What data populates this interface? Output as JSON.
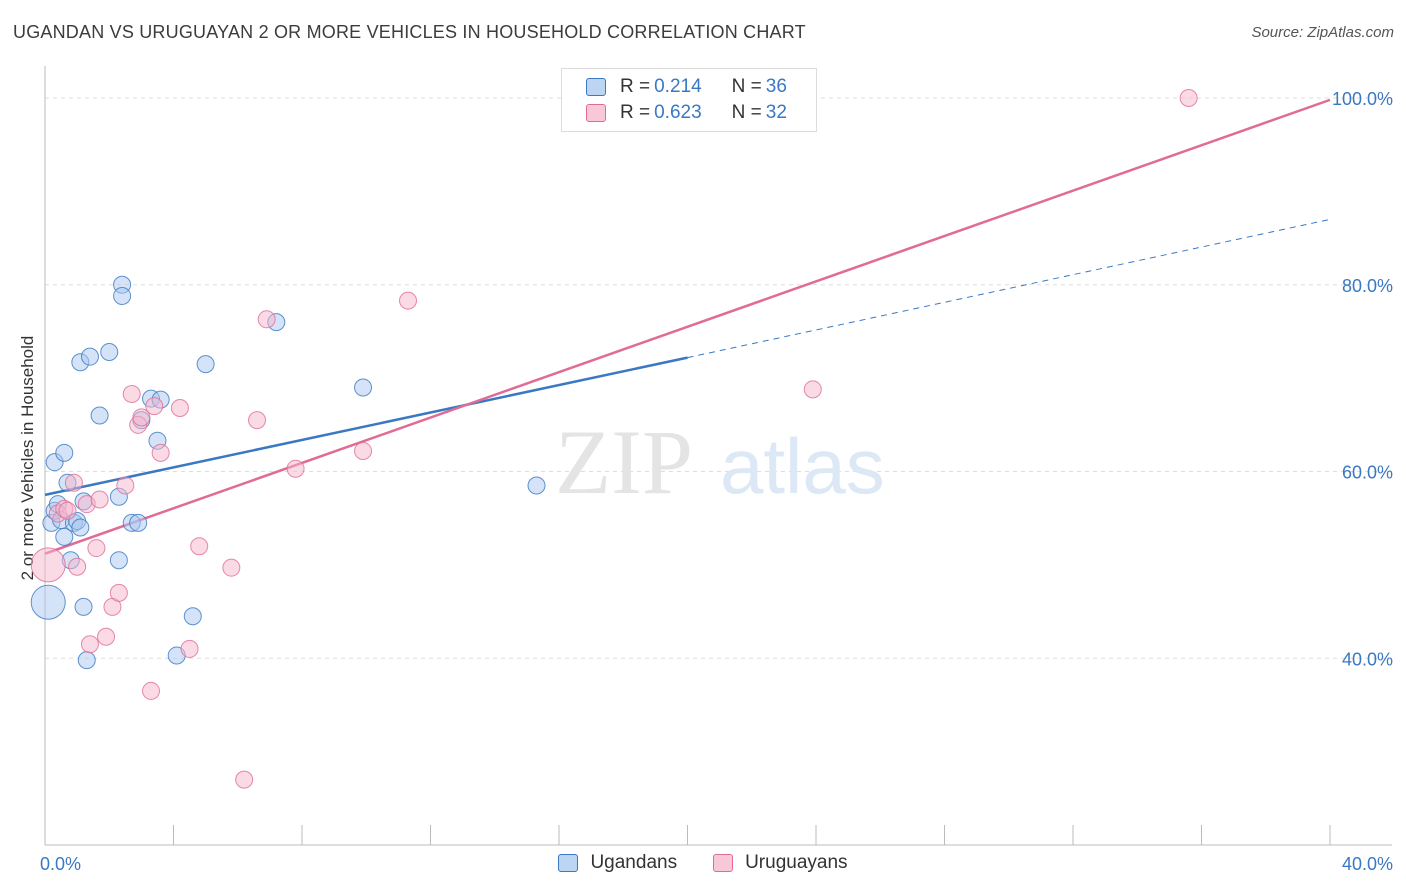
{
  "header": {
    "title": "UGANDAN VS URUGUAYAN 2 OR MORE VEHICLES IN HOUSEHOLD CORRELATION CHART",
    "source": "Source: ZipAtlas.com"
  },
  "colors": {
    "ugandans": "#3a78c3",
    "ugandans_fill": "#aac8ef",
    "uruguayans": "#e06b96",
    "uruguayans_fill": "#f6b6cb",
    "grid": "#dddddd",
    "tick_label": "#3a78c3"
  },
  "watermark": {
    "zip": "ZIP",
    "atlas": "atlas"
  },
  "legend": {
    "rows": [
      {
        "r_label": "R = ",
        "r_value": "0.214",
        "n_label": "N = ",
        "n_value": "36"
      },
      {
        "r_label": "R = ",
        "r_value": "0.623",
        "n_label": "N = ",
        "n_value": "32"
      }
    ]
  },
  "chart_data": {
    "type": "scatter",
    "title": "UGANDAN VS URUGUAYAN 2 OR MORE VEHICLES IN HOUSEHOLD CORRELATION CHART",
    "xlabel": "",
    "ylabel": "2 or more Vehicles in Household",
    "xlim": [
      0,
      40
    ],
    "ylim": [
      20,
      103
    ],
    "x_tick_labels": [
      {
        "value": 0,
        "label": "0.0%"
      },
      {
        "value": 40,
        "label": "40.0%"
      }
    ],
    "y_tick_labels": [
      {
        "value": 40,
        "label": "40.0%"
      },
      {
        "value": 60,
        "label": "60.0%"
      },
      {
        "value": 80,
        "label": "80.0%"
      },
      {
        "value": 100,
        "label": "100.0%"
      }
    ],
    "series": [
      {
        "name": "Ugandans",
        "r": 0.214,
        "n": 36,
        "trend": {
          "x0": 0,
          "y0": 57.5,
          "x1": 20,
          "y1": 72.2,
          "dash_to_x": 40,
          "dash_to_y": 87.0
        },
        "points": [
          {
            "x": 0.1,
            "y": 46.0,
            "big": true
          },
          {
            "x": 0.2,
            "y": 54.5
          },
          {
            "x": 0.3,
            "y": 61.0
          },
          {
            "x": 0.3,
            "y": 55.8
          },
          {
            "x": 0.4,
            "y": 56.5
          },
          {
            "x": 0.5,
            "y": 54.8
          },
          {
            "x": 0.6,
            "y": 62.0
          },
          {
            "x": 0.6,
            "y": 53.0
          },
          {
            "x": 0.7,
            "y": 58.8
          },
          {
            "x": 0.8,
            "y": 50.5
          },
          {
            "x": 0.9,
            "y": 54.5
          },
          {
            "x": 1.0,
            "y": 54.7
          },
          {
            "x": 1.1,
            "y": 71.7
          },
          {
            "x": 1.1,
            "y": 54.0
          },
          {
            "x": 1.2,
            "y": 45.5
          },
          {
            "x": 1.2,
            "y": 56.8
          },
          {
            "x": 1.3,
            "y": 39.8
          },
          {
            "x": 1.4,
            "y": 72.3
          },
          {
            "x": 1.7,
            "y": 66.0
          },
          {
            "x": 2.0,
            "y": 72.8
          },
          {
            "x": 2.3,
            "y": 57.3
          },
          {
            "x": 2.3,
            "y": 50.5
          },
          {
            "x": 2.4,
            "y": 80.0
          },
          {
            "x": 2.4,
            "y": 78.8
          },
          {
            "x": 2.7,
            "y": 54.5
          },
          {
            "x": 2.9,
            "y": 54.5
          },
          {
            "x": 3.3,
            "y": 67.8
          },
          {
            "x": 3.5,
            "y": 63.3
          },
          {
            "x": 3.6,
            "y": 67.7
          },
          {
            "x": 4.1,
            "y": 40.3
          },
          {
            "x": 4.6,
            "y": 44.5
          },
          {
            "x": 5.0,
            "y": 71.5
          },
          {
            "x": 7.2,
            "y": 76.0
          },
          {
            "x": 9.9,
            "y": 69.0
          },
          {
            "x": 15.3,
            "y": 58.5
          },
          {
            "x": 3.0,
            "y": 65.5
          }
        ]
      },
      {
        "name": "Uruguayans",
        "r": 0.623,
        "n": 32,
        "trend": {
          "x0": 0,
          "y0": 51.2,
          "x1": 40,
          "y1": 99.8
        },
        "points": [
          {
            "x": 0.1,
            "y": 50.0,
            "big": true
          },
          {
            "x": 0.4,
            "y": 55.5
          },
          {
            "x": 0.6,
            "y": 56.0
          },
          {
            "x": 0.7,
            "y": 55.8
          },
          {
            "x": 0.9,
            "y": 58.8
          },
          {
            "x": 1.0,
            "y": 49.8
          },
          {
            "x": 1.3,
            "y": 56.5
          },
          {
            "x": 1.4,
            "y": 41.5
          },
          {
            "x": 1.6,
            "y": 51.8
          },
          {
            "x": 1.7,
            "y": 57.0
          },
          {
            "x": 1.9,
            "y": 42.3
          },
          {
            "x": 2.1,
            "y": 45.5
          },
          {
            "x": 2.3,
            "y": 47.0
          },
          {
            "x": 2.5,
            "y": 58.5
          },
          {
            "x": 2.7,
            "y": 68.3
          },
          {
            "x": 2.9,
            "y": 65.0
          },
          {
            "x": 3.0,
            "y": 65.8
          },
          {
            "x": 3.3,
            "y": 36.5
          },
          {
            "x": 3.4,
            "y": 67.0
          },
          {
            "x": 3.6,
            "y": 62.0
          },
          {
            "x": 4.2,
            "y": 66.8
          },
          {
            "x": 4.5,
            "y": 41.0
          },
          {
            "x": 4.8,
            "y": 52.0
          },
          {
            "x": 5.8,
            "y": 49.7
          },
          {
            "x": 6.2,
            "y": 27.0
          },
          {
            "x": 6.6,
            "y": 65.5
          },
          {
            "x": 6.9,
            "y": 76.3
          },
          {
            "x": 7.8,
            "y": 60.3
          },
          {
            "x": 9.9,
            "y": 62.2
          },
          {
            "x": 11.3,
            "y": 78.3
          },
          {
            "x": 23.9,
            "y": 68.8
          },
          {
            "x": 35.6,
            "y": 100.0
          }
        ]
      }
    ],
    "legend_entries": [
      "Ugandans",
      "Uruguayans"
    ]
  }
}
